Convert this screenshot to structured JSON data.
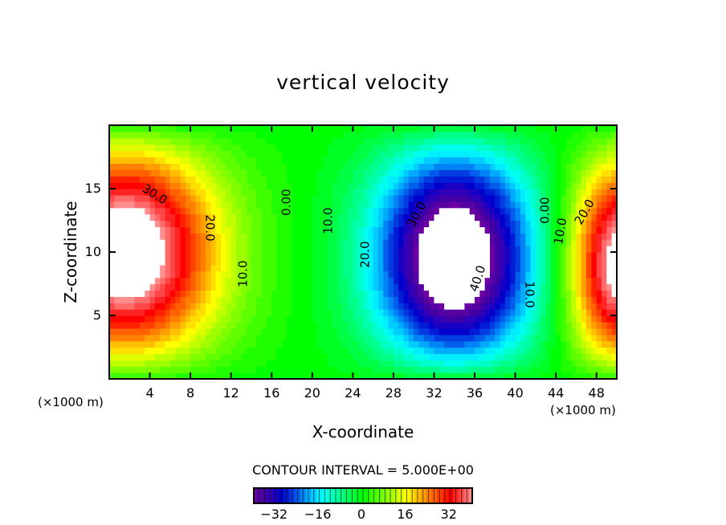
{
  "chart_data": {
    "type": "heatmap",
    "subtype": "filled-contour",
    "title": "vertical velocity",
    "xlabel": "X-coordinate",
    "ylabel": "Z-coordinate",
    "x_unit": "(×1000 m)",
    "y_unit": "(×1000 m)",
    "xlim": [
      0,
      50
    ],
    "ylim": [
      0,
      20
    ],
    "xticks": [
      4,
      8,
      12,
      16,
      20,
      24,
      28,
      32,
      36,
      40,
      44,
      48
    ],
    "yticks": [
      5,
      10,
      15
    ],
    "contour_interval_text": "CONTOUR INTERVAL = 5.000E+00",
    "contour_interval": 5,
    "colorbar": {
      "range": [
        -40,
        40
      ],
      "ticks": [
        "-32",
        "-16",
        "0",
        "16",
        "32"
      ],
      "tick_values": [
        -32,
        -16,
        0,
        16,
        32
      ]
    },
    "features": [
      {
        "name": "updraft-left",
        "x": 1.5,
        "z": 10,
        "peak": 48,
        "sx": 6.5,
        "sz": 6.5
      },
      {
        "name": "downdraft-center",
        "x": 34,
        "z": 9,
        "peak": -50,
        "sx": 5.5,
        "sz": 6.5
      },
      {
        "name": "updraft-right",
        "x": 50.5,
        "z": 8,
        "peak": 46,
        "sx": 3.6,
        "sz": 6
      }
    ],
    "contour_labels": [
      "30.0",
      "20.0",
      "10.0",
      "0.00",
      "10.0",
      "20.0",
      "30.0",
      "40.0",
      "10.0",
      "0.00",
      "10.0",
      "20.0"
    ]
  }
}
